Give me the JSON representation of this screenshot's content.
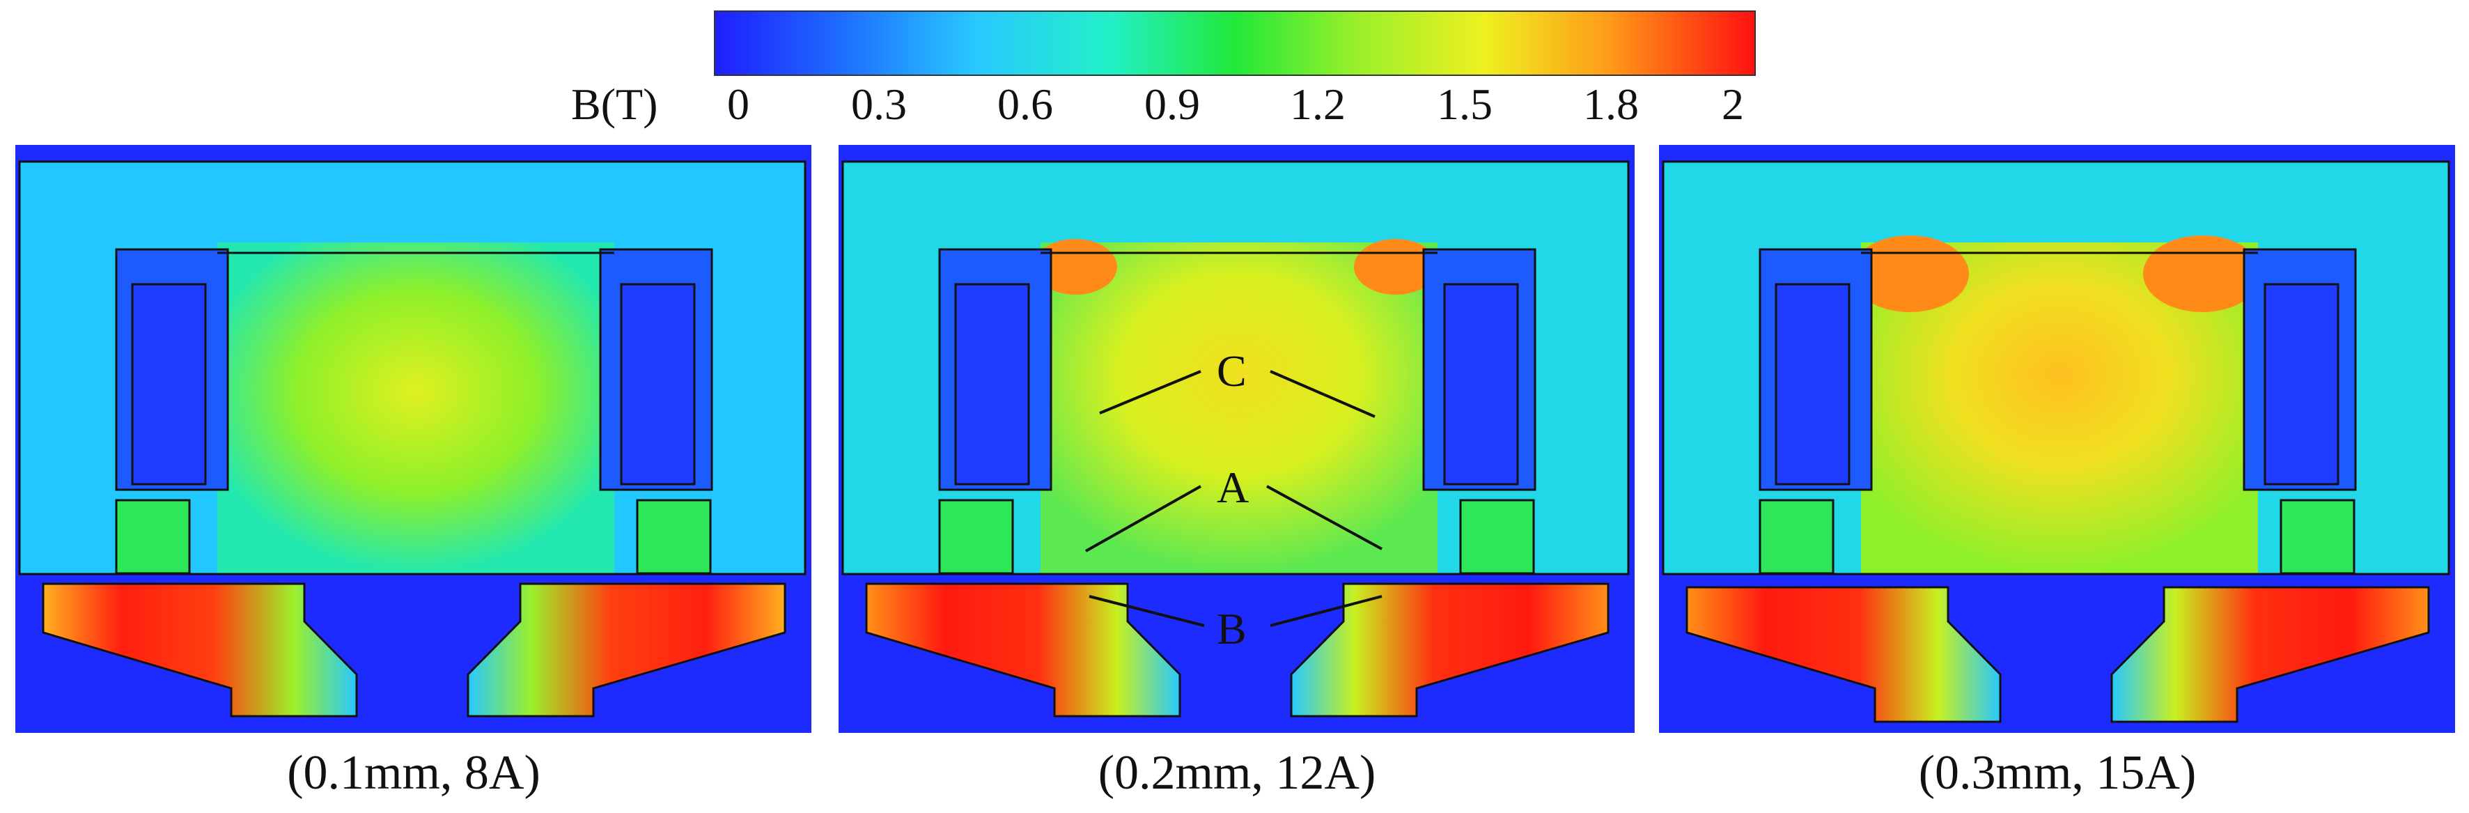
{
  "colorbar": {
    "title": "B(T)",
    "ticks": [
      "0",
      "0.3",
      "0.6",
      "0.9",
      "1.2",
      "1.5",
      "1.8",
      "2"
    ],
    "range": [
      0,
      2
    ],
    "colors": [
      "#1e2bff",
      "#1e7bff",
      "#28c8ff",
      "#22f0d0",
      "#2ee85a",
      "#9cf02a",
      "#e8f020",
      "#ffb020",
      "#ff5a10",
      "#ff1a10"
    ]
  },
  "panels": [
    {
      "caption": "(0.1mm, 8A)",
      "level": 0.55
    },
    {
      "caption": "(0.2mm, 12A)",
      "level": 0.72,
      "labels": [
        "C",
        "A",
        "B"
      ]
    },
    {
      "caption": "(0.3mm, 15A)",
      "level": 0.82
    }
  ]
}
